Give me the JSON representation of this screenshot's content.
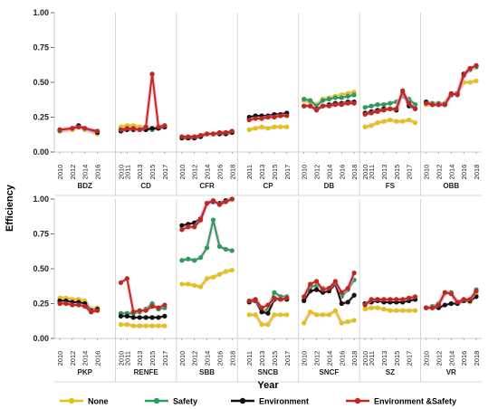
{
  "chart_data": {
    "type": "line",
    "xlabel": "Year",
    "ylabel": "Efficiency",
    "ylim": [
      0,
      1
    ],
    "yticks": [
      "0.00",
      "0.25",
      "0.50",
      "0.75",
      "1.00"
    ],
    "grid": false,
    "legend_position": "bottom",
    "series_meta": [
      {
        "name": "None",
        "color": "#e0c21a"
      },
      {
        "name": "Safety",
        "color": "#2a9d5c"
      },
      {
        "name": "Environment",
        "color": "#111111"
      },
      {
        "name": "Environment &Safety",
        "color": "#c0281e"
      }
    ],
    "rows": [
      {
        "panels": [
          {
            "name": "BDZ",
            "years": [
              2010,
              2012,
              2013,
              2014,
              2016
            ],
            "ticks": [
              "2010",
              "2012",
              "2014",
              "2016"
            ],
            "series": {
              "None": [
                0.15,
                0.16,
                0.18,
                0.16,
                0.13
              ],
              "Safety": [
                0.15,
                0.17,
                0.18,
                0.17,
                0.14
              ],
              "Environment": [
                0.16,
                0.17,
                0.19,
                0.17,
                0.14
              ],
              "Environment &Safety": [
                0.16,
                0.17,
                0.18,
                0.17,
                0.15
              ]
            }
          },
          {
            "name": "CD",
            "years": [
              2010,
              2011,
              2012,
              2013,
              2014,
              2015,
              2016,
              2017
            ],
            "ticks": [
              "2010",
              "2011",
              "2013",
              "2015",
              "2017"
            ],
            "series": {
              "None": [
                0.18,
                0.19,
                0.19,
                0.18,
                0.18,
                0.17,
                0.18,
                0.19
              ],
              "Safety": [
                0.16,
                0.17,
                0.17,
                0.16,
                0.17,
                0.16,
                0.17,
                0.18
              ],
              "Environment": [
                0.15,
                0.16,
                0.16,
                0.16,
                0.16,
                0.17,
                0.17,
                0.18
              ],
              "Environment &Safety": [
                0.16,
                0.17,
                0.17,
                0.16,
                0.18,
                0.56,
                0.18,
                0.19
              ]
            }
          },
          {
            "name": "CFR",
            "years": [
              2010,
              2011,
              2012,
              2013,
              2014,
              2015,
              2016,
              2017,
              2018
            ],
            "ticks": [
              "2010",
              "2012",
              "2014",
              "2016",
              "2018"
            ],
            "series": {
              "None": [
                0.11,
                0.1,
                0.11,
                0.11,
                0.13,
                0.13,
                0.13,
                0.14,
                0.14
              ],
              "Safety": [
                0.11,
                0.1,
                0.11,
                0.11,
                0.13,
                0.13,
                0.13,
                0.14,
                0.14
              ],
              "Environment": [
                0.1,
                0.1,
                0.1,
                0.11,
                0.13,
                0.13,
                0.13,
                0.13,
                0.14
              ],
              "Environment &Safety": [
                0.11,
                0.11,
                0.11,
                0.12,
                0.13,
                0.13,
                0.14,
                0.14,
                0.15
              ]
            }
          },
          {
            "name": "CP",
            "years": [
              2011,
              2012,
              2013,
              2014,
              2015,
              2016,
              2017
            ],
            "ticks": [
              "2011",
              "2013",
              "2015",
              "2017"
            ],
            "series": {
              "None": [
                0.16,
                0.17,
                0.18,
                0.17,
                0.18,
                0.18,
                0.18
              ],
              "Safety": [
                0.24,
                0.25,
                0.25,
                0.25,
                0.26,
                0.26,
                0.27
              ],
              "Environment": [
                0.25,
                0.26,
                0.26,
                0.26,
                0.27,
                0.27,
                0.28
              ],
              "Environment &Safety": [
                0.23,
                0.24,
                0.24,
                0.25,
                0.25,
                0.26,
                0.26
              ]
            }
          },
          {
            "name": "DB",
            "years": [
              2010,
              2011,
              2012,
              2013,
              2014,
              2015,
              2016,
              2017,
              2018
            ],
            "ticks": [
              "2010",
              "2012",
              "2014",
              "2016",
              "2018"
            ],
            "series": {
              "None": [
                0.37,
                0.36,
                0.34,
                0.38,
                0.39,
                0.4,
                0.41,
                0.42,
                0.43
              ],
              "Safety": [
                0.38,
                0.37,
                0.33,
                0.37,
                0.38,
                0.39,
                0.39,
                0.4,
                0.41
              ],
              "Environment": [
                0.33,
                0.33,
                0.31,
                0.33,
                0.34,
                0.35,
                0.35,
                0.36,
                0.36
              ],
              "Environment &Safety": [
                0.33,
                0.33,
                0.3,
                0.33,
                0.33,
                0.34,
                0.34,
                0.35,
                0.35
              ]
            }
          },
          {
            "name": "FS",
            "years": [
              2010,
              2011,
              2012,
              2013,
              2014,
              2015,
              2016,
              2017,
              2018
            ],
            "ticks": [
              "2010",
              "2011",
              "2013",
              "2015",
              "2017"
            ],
            "series": {
              "None": [
                0.18,
                0.19,
                0.21,
                0.22,
                0.23,
                0.22,
                0.22,
                0.23,
                0.21
              ],
              "Safety": [
                0.32,
                0.33,
                0.34,
                0.34,
                0.35,
                0.36,
                0.4,
                0.38,
                0.34
              ],
              "Environment": [
                0.28,
                0.29,
                0.3,
                0.31,
                0.31,
                0.3,
                0.43,
                0.33,
                0.31
              ],
              "Environment &Safety": [
                0.27,
                0.28,
                0.29,
                0.3,
                0.31,
                0.31,
                0.44,
                0.35,
                0.31
              ]
            }
          },
          {
            "name": "OBB",
            "years": [
              2010,
              2011,
              2012,
              2013,
              2014,
              2015,
              2016,
              2017,
              2018
            ],
            "ticks": [
              "2010",
              "2012",
              "2014",
              "2016",
              "2018"
            ],
            "series": {
              "None": [
                0.34,
                0.34,
                0.34,
                0.34,
                0.42,
                0.42,
                0.5,
                0.5,
                0.51
              ],
              "Safety": [
                0.36,
                0.35,
                0.35,
                0.35,
                0.42,
                0.42,
                0.55,
                0.59,
                0.61
              ],
              "Environment": [
                0.36,
                0.34,
                0.34,
                0.34,
                0.41,
                0.42,
                0.56,
                0.6,
                0.62
              ],
              "Environment &Safety": [
                0.35,
                0.34,
                0.34,
                0.34,
                0.42,
                0.41,
                0.55,
                0.6,
                0.62
              ]
            }
          }
        ]
      },
      {
        "panels": [
          {
            "name": "PKP",
            "years": [
              2010,
              2011,
              2012,
              2013,
              2014,
              2015,
              2016
            ],
            "ticks": [
              "2010",
              "2012",
              "2014",
              "2016"
            ],
            "series": {
              "None": [
                0.29,
                0.29,
                0.28,
                0.28,
                0.27,
                0.21,
                0.22
              ],
              "Safety": [
                0.26,
                0.26,
                0.25,
                0.25,
                0.24,
                0.19,
                0.2
              ],
              "Environment": [
                0.27,
                0.27,
                0.26,
                0.26,
                0.25,
                0.2,
                0.21
              ],
              "Environment &Safety": [
                0.25,
                0.25,
                0.24,
                0.24,
                0.23,
                0.19,
                0.2
              ]
            }
          },
          {
            "name": "RENFE",
            "years": [
              2010,
              2011,
              2012,
              2013,
              2014,
              2015,
              2016,
              2017
            ],
            "ticks": [
              "2010",
              "2011",
              "2013",
              "2015",
              "2017"
            ],
            "series": {
              "None": [
                0.1,
                0.1,
                0.09,
                0.09,
                0.09,
                0.09,
                0.09,
                0.09
              ],
              "Safety": [
                0.18,
                0.18,
                0.18,
                0.19,
                0.21,
                0.25,
                0.21,
                0.22
              ],
              "Environment": [
                0.16,
                0.16,
                0.15,
                0.15,
                0.15,
                0.15,
                0.15,
                0.16
              ],
              "Environment &Safety": [
                0.4,
                0.43,
                0.19,
                0.2,
                0.2,
                0.23,
                0.22,
                0.24
              ]
            }
          },
          {
            "name": "SBB",
            "years": [
              2010,
              2011,
              2012,
              2013,
              2014,
              2015,
              2016,
              2017,
              2018
            ],
            "ticks": [
              "2010",
              "2012",
              "2014",
              "2016",
              "2018"
            ],
            "series": {
              "None": [
                0.39,
                0.39,
                0.38,
                0.37,
                0.43,
                0.44,
                0.46,
                0.48,
                0.49
              ],
              "Safety": [
                0.56,
                0.57,
                0.56,
                0.58,
                0.65,
                0.85,
                0.66,
                0.64,
                0.63
              ],
              "Environment": [
                0.81,
                0.82,
                0.83,
                0.86,
                0.97,
                0.98,
                0.97,
                0.99,
                1.0
              ],
              "Environment &Safety": [
                0.78,
                0.8,
                0.8,
                0.85,
                0.97,
                0.99,
                0.96,
                0.98,
                1.0
              ]
            }
          },
          {
            "name": "SNCB",
            "years": [
              2011,
              2012,
              2013,
              2014,
              2015,
              2016,
              2017
            ],
            "ticks": [
              "2011",
              "2013",
              "2015",
              "2017"
            ],
            "series": {
              "None": [
                0.17,
                0.17,
                0.1,
                0.1,
                0.17,
                0.17,
                0.17
              ],
              "Safety": [
                0.27,
                0.28,
                0.19,
                0.21,
                0.33,
                0.3,
                0.3
              ],
              "Environment": [
                0.26,
                0.27,
                0.19,
                0.18,
                0.28,
                0.28,
                0.28
              ],
              "Environment &Safety": [
                0.27,
                0.28,
                0.22,
                0.24,
                0.29,
                0.28,
                0.29
              ]
            }
          },
          {
            "name": "SNCF",
            "years": [
              2010,
              2011,
              2012,
              2013,
              2014,
              2015,
              2016,
              2017,
              2018
            ],
            "ticks": [
              "2010",
              "2012",
              "2014",
              "2016",
              "2018"
            ],
            "series": {
              "None": [
                0.11,
                0.19,
                0.17,
                0.17,
                0.17,
                0.2,
                0.11,
                0.12,
                0.13
              ],
              "Safety": [
                0.28,
                0.37,
                0.38,
                0.36,
                0.36,
                0.4,
                0.3,
                0.35,
                0.42
              ],
              "Environment": [
                0.27,
                0.34,
                0.35,
                0.33,
                0.34,
                0.39,
                0.25,
                0.26,
                0.31
              ],
              "Environment &Safety": [
                0.3,
                0.39,
                0.41,
                0.35,
                0.36,
                0.41,
                0.33,
                0.36,
                0.47
              ]
            }
          },
          {
            "name": "SZ",
            "years": [
              2010,
              2011,
              2012,
              2013,
              2014,
              2015,
              2016,
              2017,
              2018
            ],
            "ticks": [
              "2010",
              "2011",
              "2013",
              "2015",
              "2017"
            ],
            "series": {
              "None": [
                0.21,
                0.22,
                0.22,
                0.21,
                0.2,
                0.2,
                0.2,
                0.2,
                0.2
              ],
              "Safety": [
                0.25,
                0.27,
                0.28,
                0.27,
                0.27,
                0.27,
                0.27,
                0.28,
                0.28
              ],
              "Environment": [
                0.25,
                0.26,
                0.27,
                0.26,
                0.26,
                0.26,
                0.26,
                0.27,
                0.28
              ],
              "Environment &Safety": [
                0.24,
                0.28,
                0.28,
                0.28,
                0.28,
                0.28,
                0.28,
                0.29,
                0.3
              ]
            }
          },
          {
            "name": "VR",
            "years": [
              2010,
              2011,
              2012,
              2013,
              2014,
              2015,
              2016,
              2017,
              2018
            ],
            "ticks": [
              "2010",
              "2012",
              "2014",
              "2016",
              "2018"
            ],
            "series": {
              "None": [
                0.22,
                0.22,
                0.24,
                0.32,
                0.33,
                0.25,
                0.27,
                0.26,
                0.32
              ],
              "Safety": [
                0.22,
                0.23,
                0.25,
                0.33,
                0.33,
                0.26,
                0.28,
                0.27,
                0.35
              ],
              "Environment": [
                0.22,
                0.22,
                0.22,
                0.24,
                0.25,
                0.25,
                0.27,
                0.27,
                0.3
              ],
              "Environment &Safety": [
                0.22,
                0.22,
                0.24,
                0.33,
                0.32,
                0.26,
                0.28,
                0.28,
                0.34
              ]
            }
          }
        ]
      }
    ]
  }
}
